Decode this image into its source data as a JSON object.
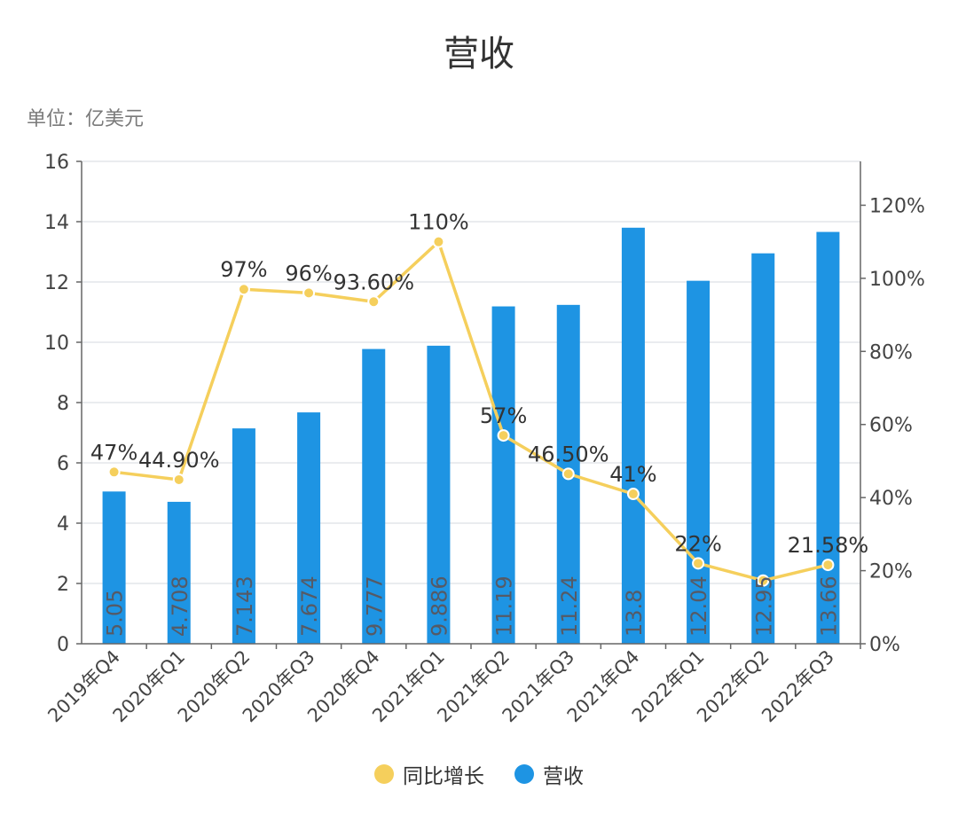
{
  "title": "营收",
  "unit_label": "单位：亿美元",
  "colors": {
    "bar": "#1e94e3",
    "line": "#f5cf5c",
    "grid": "#e3e6ea",
    "axis": "#666666"
  },
  "legend": {
    "line_label": "同比增长",
    "bar_label": "营收"
  },
  "chart_data": {
    "type": "bar",
    "categories": [
      "2019年Q4",
      "2020年Q1",
      "2020年Q2",
      "2020年Q3",
      "2020年Q4",
      "2021年Q1",
      "2021年Q2",
      "2021年Q3",
      "2021年Q4",
      "2022年Q1",
      "2022年Q2",
      "2022年Q3"
    ],
    "series": [
      {
        "name": "营收",
        "type": "bar",
        "axis": "left",
        "values": [
          5.05,
          4.708,
          7.143,
          7.674,
          9.777,
          9.886,
          11.19,
          11.24,
          13.8,
          12.04,
          12.95,
          13.66
        ],
        "labels": [
          "5.05",
          "4.708",
          "7.143",
          "7.674",
          "9.777",
          "9.886",
          "11.19",
          "11.24",
          "13.8",
          "12.04",
          "12.95",
          "13.66"
        ]
      },
      {
        "name": "同比增长",
        "type": "line",
        "axis": "right",
        "values": [
          47,
          44.9,
          97,
          96,
          93.6,
          110,
          57,
          46.5,
          41,
          22,
          17.3,
          21.58
        ],
        "labels": [
          "47%",
          "44.90%",
          "97%",
          "96%",
          "93.60%",
          "110%",
          "57%",
          "46.50%",
          "41%",
          "22%",
          "",
          "21.58%"
        ]
      }
    ],
    "y_left": {
      "min": 0,
      "max": 16,
      "ticks": [
        "0",
        "2",
        "4",
        "6",
        "8",
        "10",
        "12",
        "14",
        "16"
      ]
    },
    "y_right": {
      "min": 0,
      "max": 132,
      "ticks": [
        "0%",
        "20%",
        "40%",
        "60%",
        "80%",
        "100%",
        "120%"
      ]
    },
    "grid": true,
    "legend_position": "bottom"
  }
}
